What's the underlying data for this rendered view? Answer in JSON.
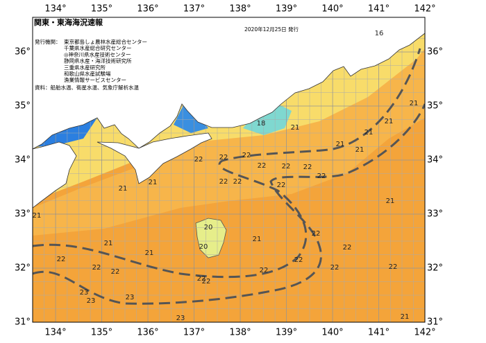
{
  "header": {
    "title": "関東・東海海況速報",
    "date": "2020年12月25日 発行",
    "issuer_label": "発行機関：",
    "issuers": [
      "東京都島しょ農林水産総合センター",
      "千葉県水産総合研究センター",
      "◎神奈川県水産技術センター",
      "静岡県水産・海洋技術研究所",
      "三重県水産研究所",
      "和歌山県水産試験場",
      "漁業情報サービスセンター"
    ],
    "source": "資料：船舶水温、衛星水温、気象庁解析水温"
  },
  "map": {
    "lon_ticks": [
      {
        "value": 134,
        "label": "134°"
      },
      {
        "value": 135,
        "label": "135°"
      },
      {
        "value": 136,
        "label": "136°"
      },
      {
        "value": 137,
        "label": "137°"
      },
      {
        "value": 138,
        "label": "138°"
      },
      {
        "value": 139,
        "label": "139°"
      },
      {
        "value": 140,
        "label": "140°"
      },
      {
        "value": 141,
        "label": "141°"
      },
      {
        "value": 142,
        "label": "142°"
      }
    ],
    "lat_ticks": [
      {
        "value": 31,
        "label": "31°"
      },
      {
        "value": 32,
        "label": "32°"
      },
      {
        "value": 33,
        "label": "33°"
      },
      {
        "value": 34,
        "label": "34°"
      },
      {
        "value": 35,
        "label": "35°"
      },
      {
        "value": 36,
        "label": "36°"
      }
    ],
    "isotherm_labels": [
      16,
      18,
      21,
      21,
      21,
      21,
      21,
      21,
      22,
      22,
      22,
      22,
      22,
      22,
      22,
      22,
      22,
      22,
      21,
      21,
      21,
      21,
      20,
      20,
      21,
      21,
      22,
      22,
      22,
      22,
      22,
      22,
      22,
      22,
      22,
      22,
      22,
      23,
      23,
      23,
      23,
      21,
      21
    ]
  }
}
